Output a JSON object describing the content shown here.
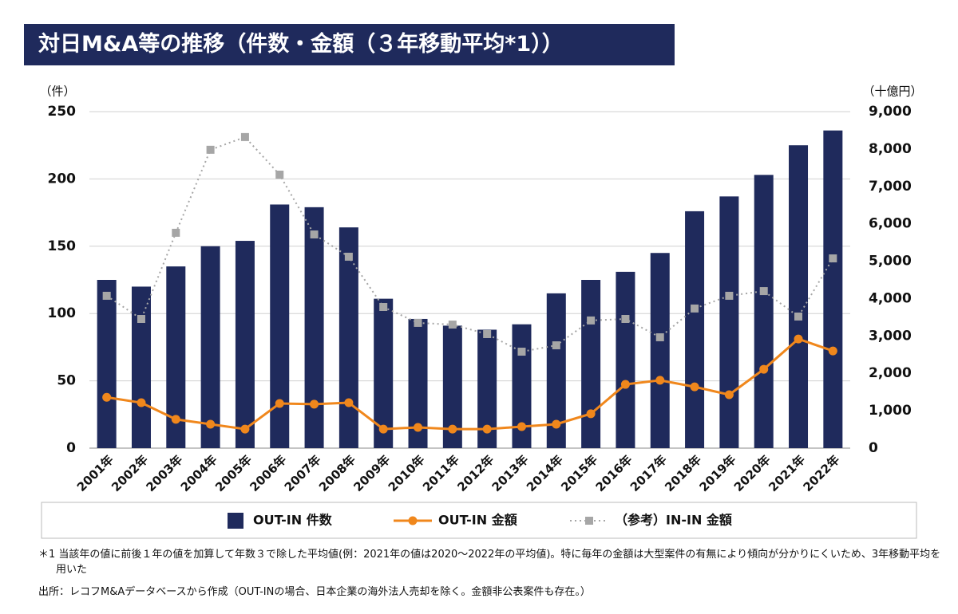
{
  "chart_data": {
    "type": "bar-line",
    "title": "対日M&A等の推移（件数・金額（３年移動平均*1））",
    "y_unit": "（件）",
    "y2_unit": "（十億円）",
    "categories": [
      "2001年",
      "2002年",
      "2003年",
      "2004年",
      "2005年",
      "2006年",
      "2007年",
      "2008年",
      "2009年",
      "2010年",
      "2011年",
      "2012年",
      "2013年",
      "2014年",
      "2015年",
      "2016年",
      "2017年",
      "2018年",
      "2019年",
      "2020年",
      "2021年",
      "2022年"
    ],
    "series": [
      {
        "name": "OUT-IN 件数",
        "type": "bar",
        "color": "#1f2a5c",
        "axis": "y",
        "values": [
          125,
          120,
          135,
          150,
          154,
          181,
          179,
          164,
          111,
          96,
          91,
          88,
          92,
          115,
          125,
          131,
          145,
          176,
          187,
          203,
          225,
          236
        ]
      },
      {
        "name": "OUT-IN 金額",
        "type": "line",
        "color": "#f0871c",
        "axis": "y2",
        "line_style": "solid",
        "marker": "circle",
        "values": [
          1360,
          1215,
          770,
          640,
          510,
          1195,
          1175,
          1215,
          510,
          555,
          510,
          510,
          575,
          640,
          920,
          1705,
          1815,
          1640,
          1430,
          2110,
          2920,
          2600
        ]
      },
      {
        "name": "（参考）IN-IN 金額",
        "type": "line",
        "color": "#a6a6a6",
        "axis": "y2",
        "line_style": "dotted",
        "marker": "square",
        "values": [
          4075,
          3455,
          5760,
          7980,
          8320,
          7315,
          5715,
          5120,
          3775,
          3350,
          3305,
          3050,
          2580,
          2750,
          3415,
          3455,
          2965,
          3735,
          4075,
          4200,
          3520,
          5075
        ]
      }
    ],
    "ylim": [
      0,
      250
    ],
    "yticks": [
      0,
      50,
      100,
      150,
      200,
      250
    ],
    "y2lim": [
      0,
      9000
    ],
    "y2ticks": [
      0,
      {
        "value": 1000,
        "label": "1,000"
      },
      {
        "value": 2000,
        "label": "2,000"
      },
      {
        "value": 3000,
        "label": "3,000"
      },
      {
        "value": 4000,
        "label": "4,000"
      },
      {
        "value": 5000,
        "label": "5,000"
      },
      {
        "value": 6000,
        "label": "6,000"
      },
      {
        "value": 7000,
        "label": "7,000"
      },
      {
        "value": 8000,
        "label": "8,000"
      },
      {
        "value": 9000,
        "label": "9,000"
      }
    ],
    "grid": true,
    "notes": [
      "＊1 当該年の値に前後１年の値を加算して年数３で除した平均値(例：2021年の値は2020～2022年の平均値)。特に毎年の金額は大型案件の有無により傾向が分かりにくいため、3年移動平均を用いた",
      "出所：レコフM&Aデータベースから作成（OUT-INの場合、日本企業の海外法人売却を除く。金額非公表案件も存在。）"
    ]
  }
}
